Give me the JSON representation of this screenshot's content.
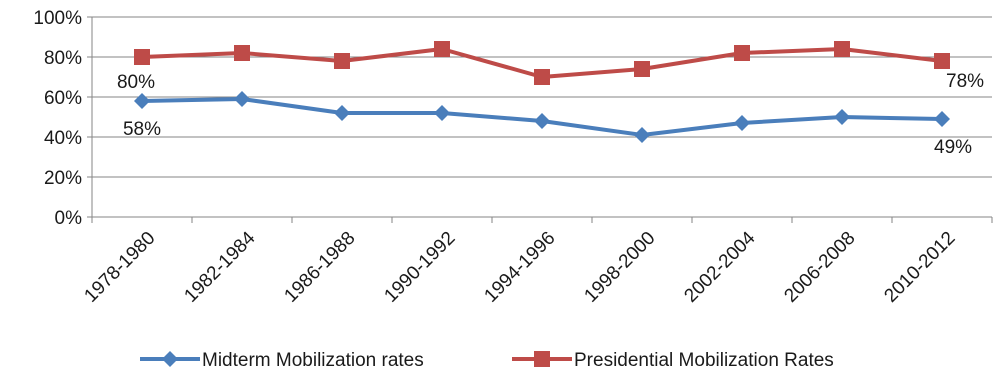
{
  "chart_data": {
    "type": "line",
    "categories": [
      "1978-1980",
      "1982-1984",
      "1986-1988",
      "1990-1992",
      "1994-1996",
      "1998-2000",
      "2002-2004",
      "2006-2008",
      "2010-2012"
    ],
    "series": [
      {
        "name": "Midterm Mobilization rates",
        "values": [
          58,
          59,
          52,
          52,
          48,
          41,
          47,
          50,
          49
        ],
        "color": "#4a7ebb",
        "marker": "diamond",
        "data_labels": {
          "0": "58%",
          "8": "49%"
        }
      },
      {
        "name": "Presidential Mobilization Rates",
        "values": [
          80,
          82,
          78,
          84,
          70,
          74,
          82,
          84,
          78
        ],
        "color": "#be4b48",
        "marker": "square",
        "data_labels": {
          "0": "80%",
          "8": "78%"
        }
      }
    ],
    "ylim": [
      0,
      100
    ],
    "yticks": [
      0,
      20,
      40,
      60,
      80,
      100
    ],
    "ytick_labels": [
      "0%",
      "20%",
      "40%",
      "60%",
      "80%",
      "100%"
    ],
    "grid": true,
    "legend_position": "bottom"
  }
}
